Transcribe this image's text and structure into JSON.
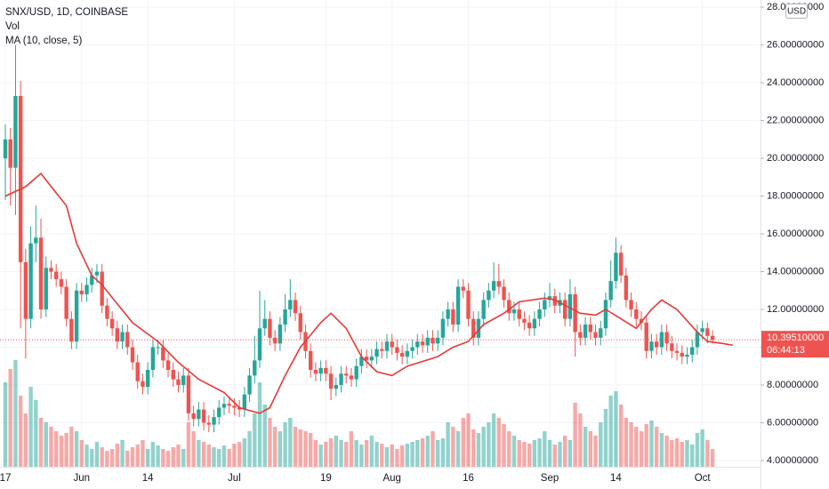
{
  "chart_data": {
    "type": "candlestick",
    "title": "SNX/USD, 1D, COINBASE",
    "volume_label": "Vol",
    "currency": "USD",
    "up_color": "#26a69a",
    "down_color": "#ef5350",
    "candles": [
      [
        20.0,
        21.8,
        17.8,
        21.0
      ],
      [
        21.0,
        21.6,
        17.5,
        19.5
      ],
      [
        19.5,
        26.0,
        17.0,
        23.3
      ],
      [
        23.3,
        24.1,
        11.0,
        14.5
      ],
      [
        14.5,
        15.2,
        9.4,
        11.5
      ],
      [
        11.5,
        16.4,
        11.0,
        15.5
      ],
      [
        15.5,
        17.5,
        14.5,
        15.8
      ],
      [
        15.8,
        16.8,
        11.5,
        12.0
      ],
      [
        12.0,
        14.8,
        11.6,
        14.2
      ],
      [
        14.2,
        14.6,
        13.6,
        14.0
      ],
      [
        14.0,
        14.4,
        13.2,
        13.6
      ],
      [
        13.6,
        14.0,
        12.8,
        13.2
      ],
      [
        13.2,
        13.6,
        11.1,
        11.5
      ],
      [
        11.5,
        11.9,
        9.9,
        10.3
      ],
      [
        10.3,
        13.4,
        9.9,
        13.0
      ],
      [
        13.0,
        13.4,
        12.4,
        12.8
      ],
      [
        12.8,
        13.7,
        12.4,
        13.3
      ],
      [
        13.3,
        14.2,
        12.9,
        13.8
      ],
      [
        13.8,
        14.4,
        13.4,
        14.0
      ],
      [
        14.0,
        14.4,
        11.8,
        12.2
      ],
      [
        12.2,
        12.6,
        11.1,
        11.5
      ],
      [
        11.5,
        11.9,
        10.6,
        11.0
      ],
      [
        11.0,
        11.4,
        9.9,
        10.3
      ],
      [
        10.3,
        11.2,
        9.9,
        10.8
      ],
      [
        10.8,
        11.2,
        9.6,
        10.0
      ],
      [
        10.0,
        10.4,
        8.8,
        9.2
      ],
      [
        9.2,
        9.6,
        7.8,
        8.2
      ],
      [
        8.2,
        8.6,
        7.5,
        7.9
      ],
      [
        7.9,
        9.2,
        7.5,
        8.8
      ],
      [
        8.8,
        10.4,
        8.4,
        10.0
      ],
      [
        10.0,
        10.4,
        9.6,
        10.0
      ],
      [
        10.0,
        10.4,
        8.9,
        9.3
      ],
      [
        9.3,
        9.7,
        8.4,
        8.8
      ],
      [
        8.8,
        9.2,
        7.9,
        8.3
      ],
      [
        8.3,
        8.7,
        7.6,
        8.0
      ],
      [
        8.0,
        8.9,
        7.6,
        8.5
      ],
      [
        8.5,
        8.9,
        6.1,
        6.5
      ],
      [
        6.5,
        6.9,
        5.8,
        6.2
      ],
      [
        6.2,
        7.1,
        5.8,
        6.7
      ],
      [
        6.7,
        7.1,
        5.6,
        6.0
      ],
      [
        6.0,
        6.4,
        5.5,
        5.9
      ],
      [
        5.9,
        6.7,
        5.5,
        6.3
      ],
      [
        6.3,
        7.2,
        5.9,
        6.8
      ],
      [
        6.8,
        7.4,
        6.4,
        7.0
      ],
      [
        7.0,
        7.4,
        6.5,
        6.9
      ],
      [
        6.9,
        7.3,
        6.4,
        6.8
      ],
      [
        6.8,
        7.2,
        6.3,
        6.7
      ],
      [
        6.7,
        7.9,
        6.3,
        7.5
      ],
      [
        7.5,
        8.9,
        7.1,
        8.5
      ],
      [
        8.5,
        10.6,
        8.1,
        9.3
      ],
      [
        9.3,
        13.0,
        8.9,
        11.0
      ],
      [
        11.0,
        12.5,
        10.6,
        11.5
      ],
      [
        11.5,
        11.9,
        10.1,
        10.5
      ],
      [
        10.5,
        10.9,
        9.8,
        10.2
      ],
      [
        10.2,
        11.6,
        9.8,
        11.2
      ],
      [
        11.2,
        12.8,
        10.8,
        12.0
      ],
      [
        12.0,
        13.6,
        11.6,
        12.5
      ],
      [
        12.5,
        12.9,
        11.4,
        11.8
      ],
      [
        11.8,
        12.2,
        10.4,
        10.8
      ],
      [
        10.8,
        11.2,
        9.4,
        9.8
      ],
      [
        9.8,
        10.2,
        8.4,
        8.8
      ],
      [
        8.8,
        9.2,
        8.2,
        8.6
      ],
      [
        8.6,
        9.3,
        8.2,
        8.9
      ],
      [
        8.9,
        9.3,
        8.2,
        8.6
      ],
      [
        8.6,
        9.0,
        7.2,
        7.8
      ],
      [
        7.8,
        8.4,
        7.4,
        8.0
      ],
      [
        8.0,
        9.0,
        7.6,
        8.6
      ],
      [
        8.6,
        9.0,
        8.1,
        8.5
      ],
      [
        8.5,
        8.9,
        7.9,
        8.3
      ],
      [
        8.3,
        9.4,
        7.9,
        9.0
      ],
      [
        9.0,
        9.9,
        8.6,
        9.5
      ],
      [
        9.5,
        9.9,
        8.9,
        9.3
      ],
      [
        9.3,
        9.9,
        8.9,
        9.5
      ],
      [
        9.5,
        10.3,
        9.1,
        9.9
      ],
      [
        9.9,
        10.3,
        9.4,
        9.8
      ],
      [
        9.8,
        10.7,
        9.4,
        10.3
      ],
      [
        10.3,
        10.7,
        9.6,
        10.0
      ],
      [
        10.0,
        10.4,
        9.3,
        9.7
      ],
      [
        9.7,
        10.1,
        9.1,
        9.5
      ],
      [
        9.5,
        10.2,
        9.1,
        9.8
      ],
      [
        9.8,
        10.4,
        9.4,
        10.0
      ],
      [
        10.0,
        10.7,
        9.6,
        10.3
      ],
      [
        10.3,
        10.7,
        9.7,
        10.1
      ],
      [
        10.1,
        10.9,
        9.7,
        10.5
      ],
      [
        10.5,
        10.9,
        9.8,
        10.2
      ],
      [
        10.2,
        10.9,
        9.8,
        10.5
      ],
      [
        10.5,
        11.9,
        10.1,
        11.5
      ],
      [
        11.5,
        12.4,
        11.1,
        12.0
      ],
      [
        12.0,
        12.4,
        10.8,
        11.2
      ],
      [
        11.2,
        13.6,
        10.8,
        13.2
      ],
      [
        13.2,
        13.6,
        12.6,
        13.0
      ],
      [
        13.0,
        13.4,
        11.1,
        11.5
      ],
      [
        11.5,
        11.9,
        10.1,
        10.5
      ],
      [
        10.5,
        11.9,
        10.1,
        11.5
      ],
      [
        11.5,
        12.9,
        11.1,
        12.5
      ],
      [
        12.5,
        13.4,
        12.1,
        13.0
      ],
      [
        13.0,
        14.5,
        12.6,
        13.5
      ],
      [
        13.5,
        14.4,
        12.8,
        13.2
      ],
      [
        13.2,
        13.6,
        12.1,
        12.5
      ],
      [
        12.5,
        12.9,
        11.4,
        11.8
      ],
      [
        11.8,
        12.4,
        11.4,
        12.0
      ],
      [
        12.0,
        12.4,
        11.1,
        11.5
      ],
      [
        11.5,
        11.9,
        10.9,
        11.3
      ],
      [
        11.3,
        11.7,
        10.6,
        11.0
      ],
      [
        11.0,
        11.9,
        10.6,
        11.5
      ],
      [
        11.5,
        12.4,
        11.1,
        12.0
      ],
      [
        12.0,
        12.9,
        11.6,
        12.5
      ],
      [
        12.5,
        13.4,
        12.1,
        12.7
      ],
      [
        12.7,
        13.1,
        11.8,
        12.2
      ],
      [
        12.2,
        12.9,
        11.8,
        12.5
      ],
      [
        12.5,
        12.9,
        11.1,
        11.5
      ],
      [
        11.5,
        13.6,
        11.1,
        12.8
      ],
      [
        12.8,
        13.2,
        9.5,
        10.8
      ],
      [
        10.8,
        11.2,
        10.1,
        10.5
      ],
      [
        10.5,
        11.6,
        10.1,
        11.2
      ],
      [
        11.2,
        11.6,
        10.4,
        10.8
      ],
      [
        10.8,
        11.2,
        10.1,
        10.5
      ],
      [
        10.5,
        11.4,
        10.1,
        11.0
      ],
      [
        11.0,
        12.9,
        10.6,
        12.5
      ],
      [
        12.5,
        14.6,
        12.1,
        13.5
      ],
      [
        13.5,
        15.8,
        13.1,
        15.0
      ],
      [
        15.0,
        15.4,
        13.4,
        13.8
      ],
      [
        13.8,
        14.2,
        12.1,
        12.5
      ],
      [
        12.5,
        12.9,
        11.6,
        12.0
      ],
      [
        12.0,
        12.4,
        11.1,
        11.5
      ],
      [
        11.5,
        11.9,
        10.9,
        11.3
      ],
      [
        11.3,
        11.7,
        9.4,
        9.8
      ],
      [
        9.8,
        10.7,
        9.4,
        10.3
      ],
      [
        10.3,
        10.7,
        9.6,
        10.0
      ],
      [
        10.0,
        11.2,
        9.6,
        10.8
      ],
      [
        10.8,
        11.2,
        9.8,
        10.2
      ],
      [
        10.2,
        10.6,
        9.4,
        9.8
      ],
      [
        9.8,
        10.2,
        9.3,
        9.7
      ],
      [
        9.7,
        10.1,
        9.1,
        9.5
      ],
      [
        9.5,
        10.0,
        9.1,
        9.6
      ],
      [
        9.6,
        10.4,
        9.2,
        10.0
      ],
      [
        10.0,
        11.2,
        9.6,
        10.8
      ],
      [
        10.8,
        11.4,
        10.4,
        11.0
      ],
      [
        11.0,
        11.3,
        10.2,
        10.6
      ],
      [
        10.6,
        10.9,
        10.2,
        10.3951
      ]
    ],
    "volume": [
      95,
      110,
      120,
      80,
      60,
      90,
      75,
      55,
      50,
      45,
      40,
      35,
      38,
      45,
      40,
      30,
      25,
      20,
      28,
      22,
      18,
      20,
      26,
      30,
      18,
      22,
      25,
      30,
      20,
      28,
      24,
      20,
      18,
      22,
      25,
      20,
      50,
      40,
      30,
      28,
      25,
      22,
      20,
      24,
      20,
      26,
      28,
      32,
      40,
      60,
      95,
      70,
      55,
      45,
      40,
      50,
      55,
      45,
      42,
      40,
      38,
      30,
      25,
      28,
      32,
      35,
      30,
      28,
      40,
      30,
      25,
      30,
      35,
      28,
      26,
      22,
      25,
      20,
      24,
      26,
      28,
      30,
      32,
      35,
      40,
      30,
      32,
      50,
      45,
      40,
      55,
      60,
      42,
      38,
      45,
      50,
      60,
      55,
      48,
      40,
      35,
      30,
      28,
      26,
      30,
      32,
      40,
      30,
      25,
      28,
      35,
      30,
      72,
      60,
      45,
      40,
      35,
      50,
      65,
      80,
      85,
      70,
      55,
      50,
      45,
      40,
      48,
      52,
      45,
      38,
      35,
      30,
      32,
      28,
      30,
      25,
      38,
      42,
      30,
      20
    ],
    "ma": {
      "name": "MA (10, close, 5)",
      "color": "#e53935",
      "x": [
        0,
        4,
        7,
        9,
        12,
        14,
        17,
        19,
        22,
        25,
        30,
        34,
        38,
        43,
        46,
        50,
        52,
        55,
        58,
        62,
        64,
        67,
        70,
        73,
        76,
        79,
        85,
        88,
        91,
        94,
        98,
        101,
        106,
        108,
        113,
        116,
        118,
        121,
        124,
        127,
        129,
        132,
        136,
        138,
        141,
        143
      ],
      "values": [
        18,
        18.5,
        19.2,
        18.5,
        17.5,
        15.5,
        13.8,
        13.3,
        12.3,
        11.3,
        10.3,
        9.2,
        8.3,
        7.6,
        6.8,
        6.5,
        6.8,
        8.5,
        10.0,
        11.3,
        11.8,
        11.0,
        9.5,
        8.7,
        8.5,
        9.0,
        9.5,
        10.0,
        10.3,
        11.2,
        11.8,
        12.4,
        12.6,
        12.5,
        11.8,
        11.7,
        12.0,
        11.5,
        11.0,
        12.0,
        12.5,
        12.0,
        10.8,
        10.3,
        10.2,
        10.1
      ]
    },
    "last_price": {
      "value": 10.3951,
      "label": "10.39510000"
    },
    "countdown": "06:44:13",
    "ylim": [
      3.67,
      28.24
    ],
    "yticks": [
      {
        "value": 4,
        "label": "4.00000000"
      },
      {
        "value": 6,
        "label": "6.00000000"
      },
      {
        "value": 8,
        "label": "8.00000000"
      },
      {
        "value": 10,
        "label": "10.00000000"
      },
      {
        "value": 12,
        "label": "12.00000000"
      },
      {
        "value": 14,
        "label": "14.00000000"
      },
      {
        "value": 16,
        "label": "16.00000000"
      },
      {
        "value": 18,
        "label": "18.00000000"
      },
      {
        "value": 20,
        "label": "20.00000000"
      },
      {
        "value": 22,
        "label": "22.00000000"
      },
      {
        "value": 24,
        "label": "24.00000000"
      },
      {
        "value": 26,
        "label": "26.00000000"
      },
      {
        "value": 28,
        "label": "28.00000000"
      }
    ],
    "xticks": [
      {
        "value": 0,
        "label": "17"
      },
      {
        "value": 15,
        "label": "Jun"
      },
      {
        "value": 28,
        "label": "14"
      },
      {
        "value": 45,
        "label": "Jul"
      },
      {
        "value": 63,
        "label": "19"
      },
      {
        "value": 76,
        "label": "Aug"
      },
      {
        "value": 91,
        "label": "16"
      },
      {
        "value": 107,
        "label": "Sep"
      },
      {
        "value": 120,
        "label": "14"
      },
      {
        "value": 137,
        "label": "Oct"
      }
    ],
    "grid": true
  }
}
